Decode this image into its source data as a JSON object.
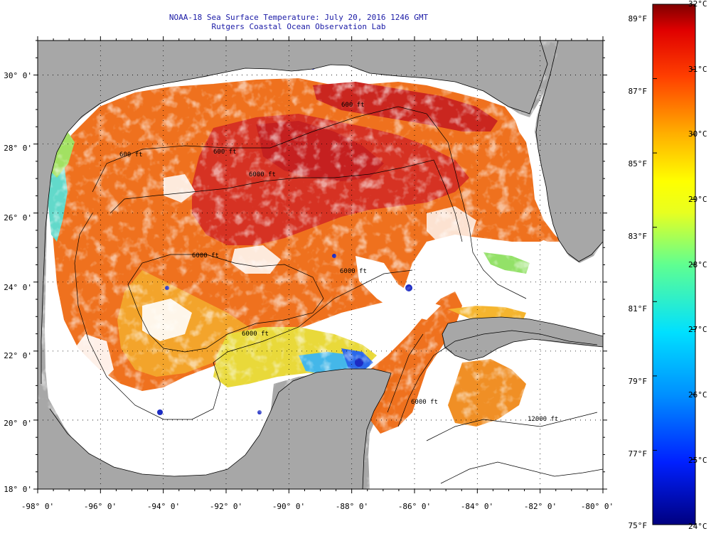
{
  "title": {
    "line1": "NOAA-18 Sea Surface Temperature:  July 20, 2016 1246 GMT",
    "line2": "Rutgers Coastal Ocean Observation Lab"
  },
  "map": {
    "lon_range": [
      -98,
      -80
    ],
    "lat_range": [
      18,
      31
    ],
    "lon_labels": [
      "-98° 0'",
      "-96° 0'",
      "-94° 0'",
      "-92° 0'",
      "-90° 0'",
      "-88° 0'",
      "-86° 0'",
      "-84° 0'",
      "-82° 0'",
      "-80° 0'"
    ],
    "lat_labels": [
      "18° 0'",
      "20° 0'",
      "22° 0'",
      "24° 0'",
      "26° 0'",
      "28° 0'",
      "30° 0'"
    ],
    "contour_labels": [
      "600 ft",
      "600 ft",
      "600 ft",
      "6000 ft",
      "6000 ft",
      "6000 ft",
      "6000 ft",
      "12000 ft",
      "6000 ft"
    ],
    "colors": {
      "land": "#a7a7a7",
      "nodata_ocean": "#ffffff",
      "sst_warm": "#e84a10",
      "sst_hot": "#c81414",
      "sst_mid": "#f59a18",
      "sst_cool": "#e6e628",
      "sst_cold": "#2aa0ee"
    }
  },
  "colorbar": {
    "celsius_labels": [
      "32°C",
      "31°C",
      "30°C",
      "29°C",
      "28°C",
      "27°C",
      "26°C",
      "25°C",
      "24°C"
    ],
    "fahrenheit_labels": [
      "89°F",
      "87°F",
      "85°F",
      "83°F",
      "81°F",
      "79°F",
      "77°F",
      "75°F"
    ],
    "celsius_range": [
      24,
      32
    ],
    "fahrenheit_range": [
      75,
      89
    ]
  }
}
